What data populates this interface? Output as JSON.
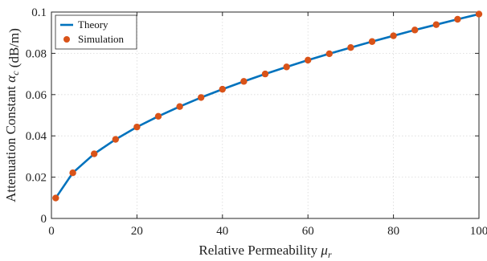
{
  "chart_data": {
    "type": "line",
    "xlabel": "Relative Permeability μ_r",
    "ylabel": "Attenuation Constant α_c (dB/m)",
    "xlim": [
      0,
      100
    ],
    "ylim": [
      0,
      0.1
    ],
    "grid": true,
    "legend_position": "top-left",
    "x_ticks": [
      0,
      20,
      40,
      60,
      80,
      100
    ],
    "x_tick_labels": [
      "0",
      "20",
      "40",
      "60",
      "80",
      "100"
    ],
    "y_ticks": [
      0,
      0.02,
      0.04,
      0.06,
      0.08,
      0.1
    ],
    "y_tick_labels": [
      "0",
      "0.02",
      "0.04",
      "0.06",
      "0.08",
      "0.1"
    ],
    "series": [
      {
        "name": "Theory",
        "kind": "line",
        "color": "#0072BD",
        "x": [
          1,
          5,
          10,
          15,
          20,
          25,
          30,
          35,
          40,
          45,
          50,
          55,
          60,
          65,
          70,
          75,
          80,
          85,
          90,
          95,
          100
        ],
        "y": [
          0.0099,
          0.0221,
          0.0313,
          0.0383,
          0.0443,
          0.0495,
          0.0542,
          0.0586,
          0.0626,
          0.0664,
          0.07,
          0.0734,
          0.0767,
          0.0798,
          0.0828,
          0.0857,
          0.0885,
          0.0913,
          0.0939,
          0.0965,
          0.099
        ]
      },
      {
        "name": "Simulation",
        "kind": "scatter",
        "color": "#D95319",
        "x": [
          1,
          5,
          10,
          15,
          20,
          25,
          30,
          35,
          40,
          45,
          50,
          55,
          60,
          65,
          70,
          75,
          80,
          85,
          90,
          95,
          100
        ],
        "y": [
          0.0099,
          0.0221,
          0.0313,
          0.0383,
          0.0443,
          0.0495,
          0.0542,
          0.0586,
          0.0626,
          0.0664,
          0.07,
          0.0734,
          0.0767,
          0.0798,
          0.0828,
          0.0857,
          0.0885,
          0.0913,
          0.0939,
          0.0965,
          0.099
        ]
      }
    ]
  }
}
